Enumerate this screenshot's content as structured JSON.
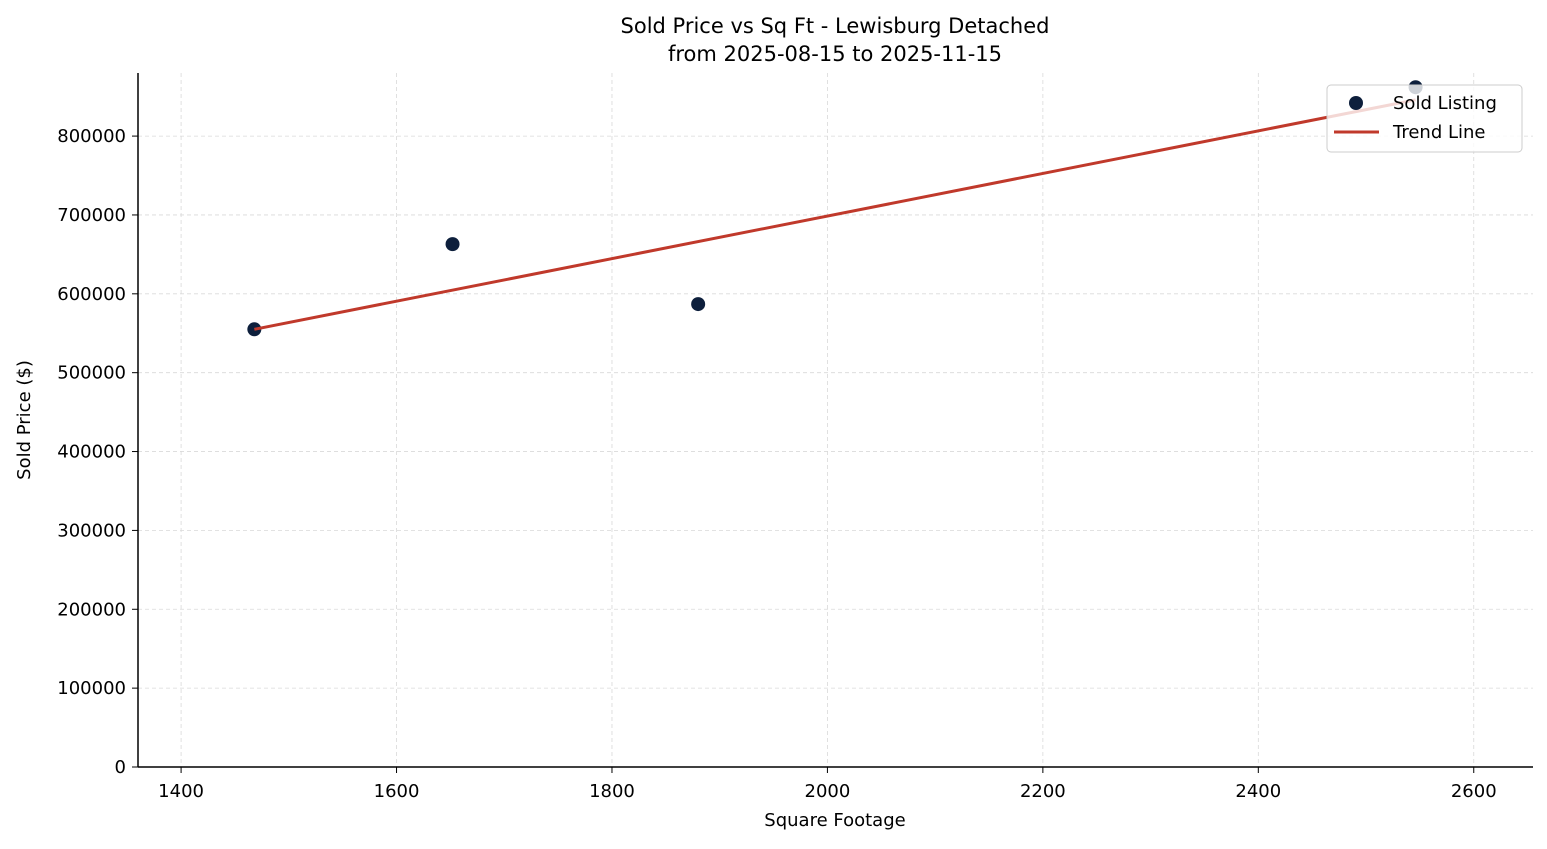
{
  "chart_data": {
    "type": "scatter",
    "title": "Sold Price vs Sq Ft - Lewisburg Detached",
    "subtitle": "from 2025-08-15 to 2025-11-15",
    "xlabel": "Square Footage",
    "ylabel": "Sold Price ($)",
    "xlim": [
      1360,
      2655
    ],
    "ylim": [
      0,
      880000
    ],
    "xticks": [
      1400,
      1600,
      1800,
      2000,
      2200,
      2400,
      2600
    ],
    "yticks": [
      0,
      100000,
      200000,
      300000,
      400000,
      500000,
      600000,
      700000,
      800000
    ],
    "grid": true,
    "legend_position": "top-right",
    "series": [
      {
        "name": "Sold Listing",
        "type": "scatter",
        "color": "#0d1f3c",
        "points": [
          {
            "x": 1468,
            "y": 555000
          },
          {
            "x": 1652,
            "y": 663000
          },
          {
            "x": 1880,
            "y": 587000
          },
          {
            "x": 2546,
            "y": 862000
          }
        ]
      },
      {
        "name": "Trend Line",
        "type": "line",
        "color": "#c0392b",
        "points": [
          {
            "x": 1468,
            "y": 555000
          },
          {
            "x": 2546,
            "y": 846000
          }
        ]
      }
    ]
  }
}
